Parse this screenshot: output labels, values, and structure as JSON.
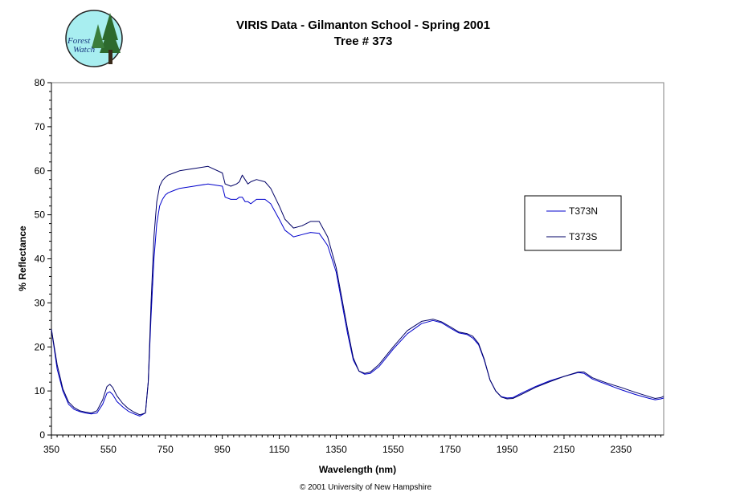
{
  "logo": {
    "line1": "Forest",
    "line2": "Watch"
  },
  "copyright": "© 2001 University of New Hampshire",
  "chart_data": {
    "type": "line",
    "title": "VIRIS Data - Gilmanton School - Spring 2001",
    "subtitle": "Tree # 373",
    "xlabel": "Wavelength (nm)",
    "ylabel": "% Reflectance",
    "xlim": [
      350,
      2500
    ],
    "ylim": [
      0,
      80
    ],
    "xticks": [
      350,
      550,
      750,
      950,
      1150,
      1350,
      1550,
      1750,
      1950,
      2150,
      2350
    ],
    "yticks": [
      0,
      10,
      20,
      30,
      40,
      50,
      60,
      70,
      80
    ],
    "grid": false,
    "legend_position": "right",
    "series": [
      {
        "name": "T373N",
        "color": "#0000cc",
        "x": [
          350,
          370,
          390,
          410,
          430,
          450,
          470,
          490,
          510,
          530,
          545,
          555,
          565,
          580,
          600,
          620,
          640,
          660,
          680,
          690,
          700,
          710,
          720,
          730,
          740,
          750,
          760,
          780,
          800,
          850,
          900,
          950,
          960,
          980,
          1000,
          1010,
          1020,
          1030,
          1040,
          1050,
          1070,
          1100,
          1120,
          1150,
          1170,
          1200,
          1230,
          1260,
          1290,
          1320,
          1350,
          1370,
          1390,
          1410,
          1430,
          1450,
          1470,
          1500,
          1550,
          1600,
          1650,
          1690,
          1720,
          1750,
          1780,
          1810,
          1830,
          1850,
          1870,
          1890,
          1910,
          1930,
          1950,
          1970,
          2000,
          2050,
          2100,
          2150,
          2200,
          2220,
          2250,
          2300,
          2350,
          2400,
          2450,
          2470,
          2490,
          2500
        ],
        "values": [
          24,
          15,
          10,
          7,
          5.8,
          5.3,
          5,
          4.8,
          5,
          7,
          9.5,
          9.8,
          9.2,
          7.6,
          6.4,
          5.4,
          4.8,
          4.3,
          5,
          12,
          27,
          40,
          48,
          52,
          53.5,
          54.5,
          55,
          55.5,
          56,
          56.5,
          57,
          56.5,
          54,
          53.5,
          53.5,
          54,
          54,
          53,
          53,
          52.5,
          53.5,
          53.5,
          52.5,
          49,
          46.5,
          45,
          45.5,
          46,
          45.8,
          43,
          37,
          30,
          23,
          17,
          14.5,
          13.8,
          14,
          15.5,
          19.5,
          23,
          25.3,
          26,
          25.5,
          24.3,
          23.2,
          22.8,
          22,
          20.5,
          17,
          12.5,
          10,
          8.7,
          8.4,
          8.5,
          9.5,
          11,
          12.3,
          13.3,
          14.2,
          14,
          12.7,
          11.5,
          10.3,
          9.2,
          8.3,
          8,
          8.2,
          8.4
        ]
      },
      {
        "name": "T373S",
        "color": "#000066",
        "x": [
          350,
          370,
          390,
          410,
          430,
          450,
          470,
          490,
          510,
          530,
          545,
          555,
          565,
          580,
          600,
          620,
          640,
          660,
          680,
          690,
          700,
          710,
          720,
          730,
          740,
          750,
          760,
          780,
          800,
          850,
          900,
          950,
          960,
          980,
          1000,
          1010,
          1020,
          1030,
          1040,
          1050,
          1070,
          1100,
          1120,
          1150,
          1170,
          1200,
          1230,
          1260,
          1290,
          1320,
          1350,
          1370,
          1390,
          1410,
          1430,
          1450,
          1470,
          1500,
          1550,
          1600,
          1650,
          1690,
          1720,
          1750,
          1780,
          1810,
          1830,
          1850,
          1870,
          1890,
          1910,
          1930,
          1950,
          1970,
          2000,
          2050,
          2100,
          2150,
          2200,
          2220,
          2250,
          2300,
          2350,
          2400,
          2450,
          2470,
          2490,
          2500
        ],
        "values": [
          24,
          16,
          10.5,
          7.5,
          6.2,
          5.5,
          5.2,
          5,
          5.5,
          8,
          11,
          11.5,
          10.8,
          8.9,
          7.2,
          6,
          5.2,
          4.6,
          5,
          12,
          30,
          45,
          53,
          56.5,
          57.8,
          58.5,
          59,
          59.5,
          60,
          60.5,
          61,
          59.5,
          57,
          56.5,
          57,
          57.5,
          59,
          58,
          57,
          57.5,
          58,
          57.5,
          56,
          52,
          49,
          47,
          47.5,
          48.5,
          48.5,
          45,
          38,
          31,
          24,
          17.5,
          14.5,
          14,
          14.3,
          16,
          20,
          23.7,
          25.8,
          26.3,
          25.7,
          24.6,
          23.4,
          23,
          22.4,
          20.8,
          17.2,
          12.5,
          10,
          8.6,
          8.2,
          8.3,
          9.2,
          10.8,
          12.1,
          13.3,
          14.3,
          14.3,
          13,
          11.8,
          10.8,
          9.7,
          8.7,
          8.3,
          8.5,
          8.8
        ]
      }
    ]
  }
}
